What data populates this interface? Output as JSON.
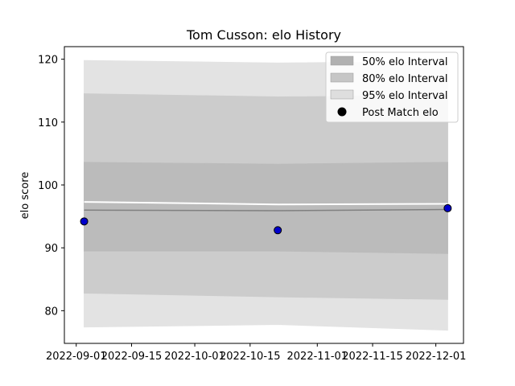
{
  "chart_data": {
    "type": "line",
    "title": "Tom Cusson: elo History",
    "ylabel": "elo score",
    "xlabel": "",
    "x_ticks": [
      "2022-09-01",
      "2022-09-15",
      "2022-10-01",
      "2022-10-15",
      "2022-11-01",
      "2022-11-15",
      "2022-12-01"
    ],
    "y_ticks": [
      80,
      90,
      100,
      110,
      120
    ],
    "xlim": [
      "2022-08-29",
      "2022-12-08"
    ],
    "ylim": [
      74.8,
      122.0
    ],
    "grid": false,
    "legend_position": "top-right",
    "band_x": [
      "2022-09-03",
      "2022-10-22",
      "2022-12-04"
    ],
    "bands": [
      {
        "label": "95% elo Interval",
        "color": "#e3e3e3",
        "lower": [
          77.4,
          77.8,
          76.9
        ],
        "upper": [
          119.8,
          119.4,
          119.6
        ]
      },
      {
        "label": "80% elo Interval",
        "color": "#cccccc",
        "lower": [
          82.8,
          82.2,
          81.8
        ],
        "upper": [
          114.5,
          114.0,
          114.2
        ]
      },
      {
        "label": "50% elo Interval",
        "color": "#bbbbbb",
        "lower": [
          89.5,
          89.5,
          89.1
        ],
        "upper": [
          103.6,
          103.3,
          103.6
        ]
      }
    ],
    "legend_colors": {
      "50% elo Interval": "#b1b1b1",
      "80% elo Interval": "#c6c6c6",
      "95% elo Interval": "#dedede"
    },
    "mean_line": [
      96.0,
      95.9,
      96.1
    ],
    "upper_white_line": [
      97.3,
      96.9,
      97.0
    ],
    "points": {
      "label": "Post Match elo",
      "x": [
        "2022-09-03",
        "2022-10-22",
        "2022-12-04"
      ],
      "y": [
        94.2,
        92.8,
        96.3
      ],
      "color": "#0000cc"
    }
  }
}
